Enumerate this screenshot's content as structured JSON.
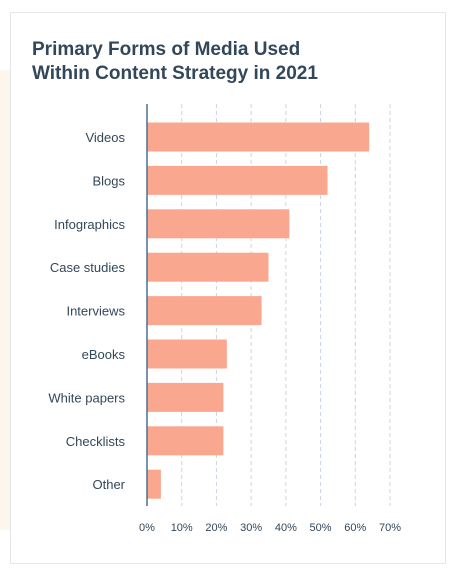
{
  "chart_data": {
    "type": "bar",
    "orientation": "horizontal",
    "title": [
      "Primary Forms of Media Used",
      "Within Content Strategy in 2021"
    ],
    "categories": [
      "Videos",
      "Blogs",
      "Infographics",
      "Case studies",
      "Interviews",
      "eBooks",
      "White papers",
      "Checklists",
      "Other"
    ],
    "values": [
      64,
      52,
      41,
      35,
      33,
      23,
      22,
      22,
      4
    ],
    "xlim": [
      0,
      70
    ],
    "xticks": [
      "0%",
      "10%",
      "20%",
      "30%",
      "40%",
      "50%",
      "60%",
      "70%"
    ],
    "xlabel": "",
    "ylabel": "",
    "grid": "vertical dashed",
    "legend": "none",
    "bar_color": "#f9a78f",
    "axis_color": "#516f90",
    "grid_color": "#cbd6e2"
  }
}
